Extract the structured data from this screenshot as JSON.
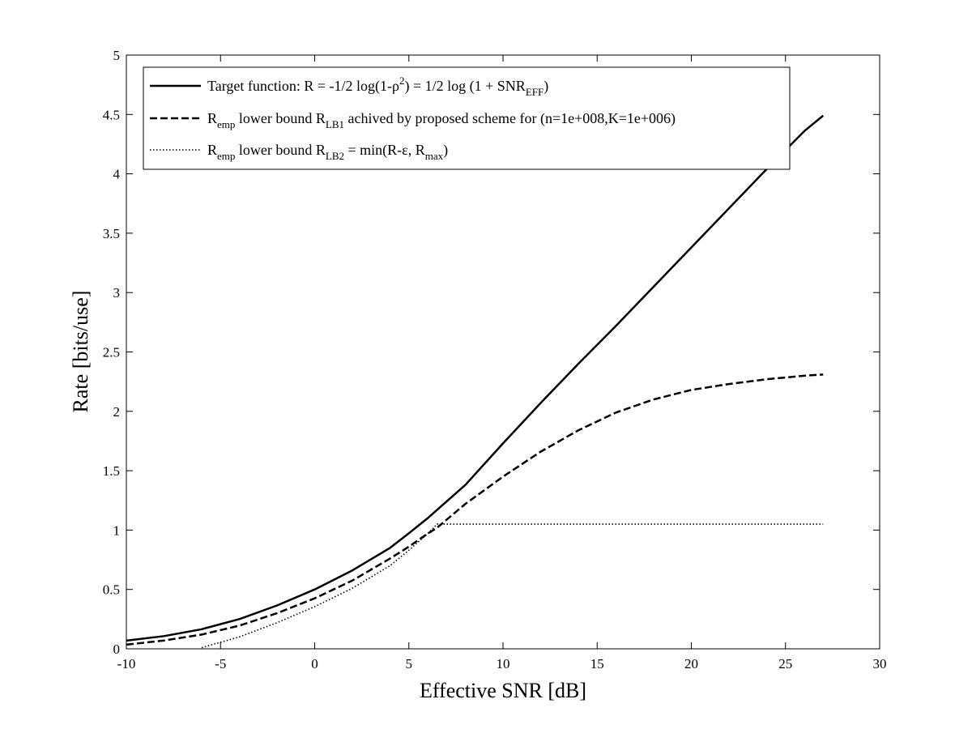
{
  "chart_data": {
    "type": "line",
    "title": "",
    "xlabel": "Effective SNR [dB]",
    "ylabel": "Rate [bits/use]",
    "xlim": [
      -10,
      30
    ],
    "ylim": [
      0,
      5
    ],
    "xticks": [
      -10,
      -5,
      0,
      5,
      10,
      15,
      20,
      25,
      30
    ],
    "yticks": [
      0,
      0.5,
      1,
      1.5,
      2,
      2.5,
      3,
      3.5,
      4,
      4.5,
      5
    ],
    "xtick_labels": [
      "-10",
      "-5",
      "0",
      "5",
      "10",
      "15",
      "20",
      "25",
      "30"
    ],
    "ytick_labels": [
      "0",
      "0.5",
      "1",
      "1.5",
      "2",
      "2.5",
      "3",
      "3.5",
      "4",
      "4.5",
      "5"
    ],
    "grid": false,
    "legend_position": "top-left",
    "x": [
      -10,
      -8,
      -6,
      -4,
      -2,
      0,
      2,
      4,
      5,
      6,
      6.5,
      8,
      10,
      12,
      14,
      16,
      18,
      20,
      22,
      24,
      26,
      27
    ],
    "series": [
      {
        "name": "Target function: R = -1/2 log(1-ρ²) = 1/2 log (1 + SNR_EFF)",
        "style": "solid",
        "values": [
          0.069,
          0.107,
          0.165,
          0.25,
          0.365,
          0.5,
          0.66,
          0.85,
          0.973,
          1.1,
          1.17,
          1.38,
          1.73,
          2.07,
          2.4,
          2.72,
          3.05,
          3.38,
          3.71,
          4.04,
          4.36,
          4.49
        ]
      },
      {
        "name": "R_emp lower bound R_LB1 achived by proposed scheme for (n=1e+008,K=1e+006)",
        "style": "dashed",
        "values": [
          0.035,
          0.07,
          0.12,
          0.195,
          0.3,
          0.425,
          0.575,
          0.76,
          0.86,
          0.97,
          1.02,
          1.22,
          1.45,
          1.66,
          1.84,
          1.99,
          2.1,
          2.18,
          2.23,
          2.27,
          2.3,
          2.31
        ]
      },
      {
        "name": "R_emp lower bound R_LB2 = min(R-ε, R_max)",
        "style": "dotted",
        "values": [
          null,
          null,
          0.01,
          0.1,
          0.22,
          0.355,
          0.51,
          0.7,
          0.83,
          0.97,
          1.05,
          1.05,
          1.05,
          1.05,
          1.05,
          1.05,
          1.05,
          1.05,
          1.05,
          1.05,
          1.05,
          1.05
        ]
      }
    ],
    "legend": [
      {
        "style": "solid",
        "text": "Target function: R = -1/2 log(1-ρ",
        "sup": "2",
        "text2": ") = 1/2 log (1 + SNR",
        "sub": "EFF",
        "text3": ")"
      },
      {
        "style": "dashed",
        "pre": "R",
        "pre_sub": "emp",
        "text": " lower bound R",
        "sub": "LB1",
        "text2": " achived by proposed scheme for (n=1e+008,K=1e+006)"
      },
      {
        "style": "dotted",
        "pre": "R",
        "pre_sub": "emp",
        "text": " lower bound R",
        "sub": "LB2",
        "text2": " = min(R-ε, R",
        "sub2": "max",
        "text3": ")"
      }
    ]
  }
}
